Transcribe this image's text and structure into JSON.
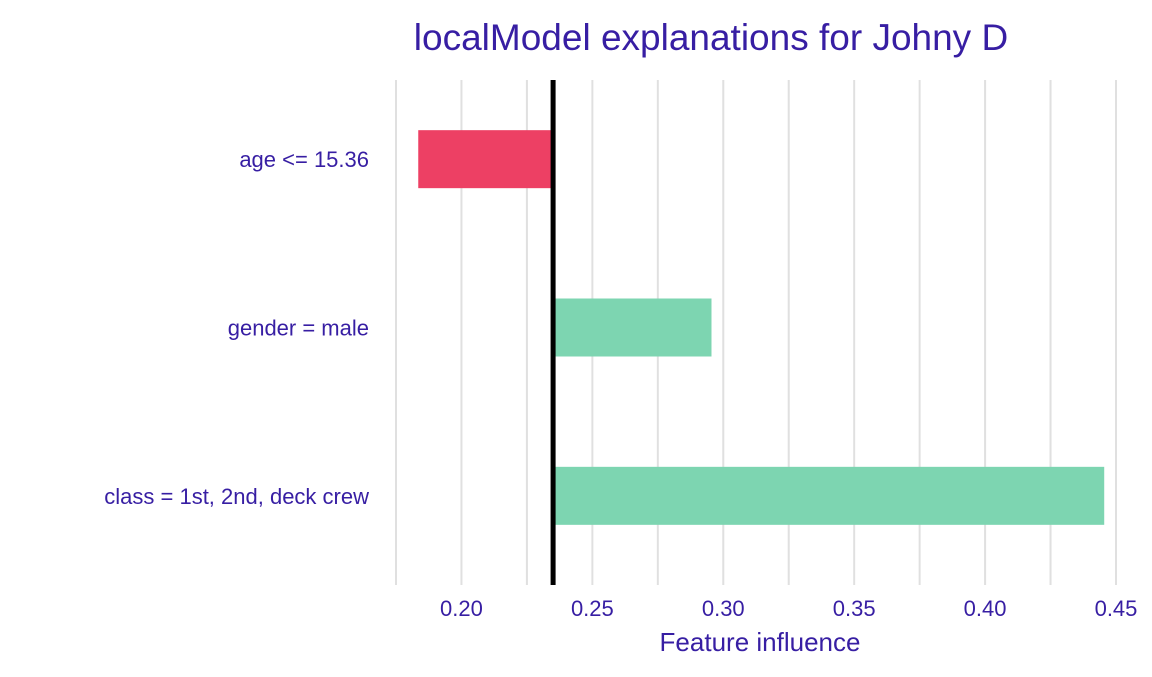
{
  "chart_data": {
    "type": "bar",
    "orientation": "horizontal",
    "title": "localModel explanations for Johny D",
    "xlabel": "Feature influence",
    "ylabel": "",
    "baseline": 0.235,
    "xlim": [
      0.175,
      0.45
    ],
    "x_ticks": [
      0.2,
      0.25,
      0.3,
      0.35,
      0.4,
      0.45
    ],
    "x_tick_labels": [
      "0.20",
      "0.25",
      "0.30",
      "0.35",
      "0.40",
      "0.45"
    ],
    "grid": true,
    "categories": [
      "age <= 15.36",
      "gender = male",
      "class = 1st, 2nd, deck crew"
    ],
    "bars": [
      {
        "label": "age <= 15.36",
        "start": 0.235,
        "end": 0.1835
      },
      {
        "label": "gender = male",
        "start": 0.235,
        "end": 0.2955
      },
      {
        "label": "class = 1st, 2nd, deck crew",
        "start": 0.235,
        "end": 0.4455
      }
    ],
    "colors": {
      "positive": "#7dd5b1",
      "negative": "#ed4064",
      "text": "#371ea3",
      "grid": "#e0e0e0",
      "baseline": "#000000"
    }
  }
}
